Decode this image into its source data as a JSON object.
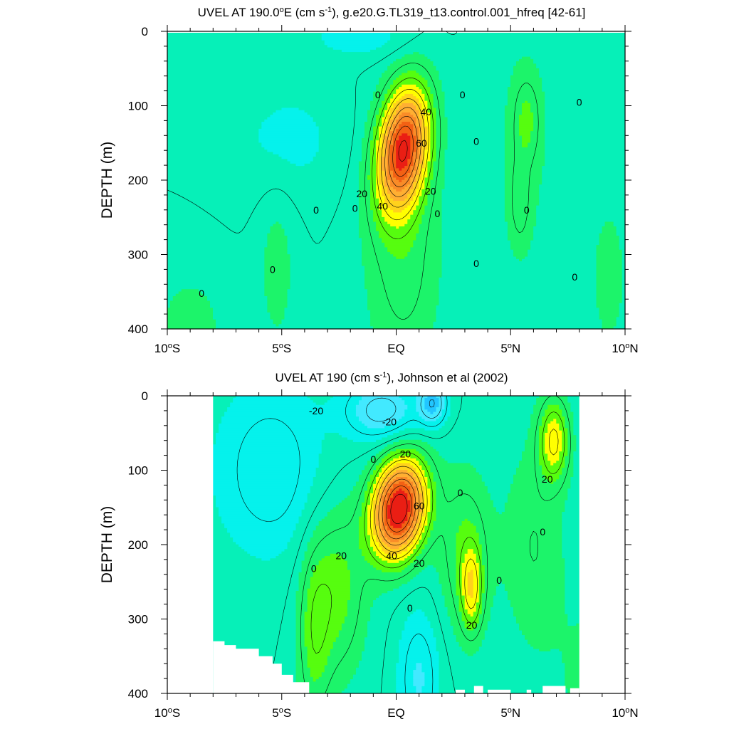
{
  "colors": {
    "n30": "#22c6ff",
    "n20": "#42e9ff",
    "n10": "#05f2ec",
    "z": "#06f0b8",
    "p10": "#1cf46a",
    "p20": "#56fd0f",
    "p30": "#ffff00",
    "p40": "#ffd21c",
    "p50": "#ffaf32",
    "p60": "#f98c28",
    "p70": "#f36114",
    "p80": "#ea1e14",
    "line": "#000000"
  },
  "chart_data": [
    {
      "type": "contour",
      "title": "UVEL AT 190.0°E (cm s-1), g.e20.G.TL319_t13.control.001_hfreq [42-61]",
      "title_parts": {
        "pre": "UVEL AT 190.0",
        "deg": "o",
        "post1": "E (cm s",
        "sup": "-1",
        "post2": "), g.e20.G.TL319_t13.control.001_hfreq [42-61]"
      },
      "ylabel": "DEPTH (m)",
      "xlim": [
        -10,
        10
      ],
      "ylim": [
        0,
        400
      ],
      "y_inverted": true,
      "y_ticks": [
        "0",
        "100",
        "200",
        "300",
        "400"
      ],
      "x_ticks": [
        {
          "val": -10,
          "num": "10",
          "sup": "o",
          "hemi": "S"
        },
        {
          "val": -5,
          "num": "5",
          "sup": "o",
          "hemi": "S"
        },
        {
          "val": 0,
          "num": "EQ",
          "sup": "",
          "hemi": ""
        },
        {
          "val": 5,
          "num": "5",
          "sup": "o",
          "hemi": "N"
        },
        {
          "val": 10,
          "num": "10",
          "sup": "o",
          "hemi": "N"
        }
      ],
      "contour_interval": 10,
      "core": {
        "lat": 0.3,
        "depth": 155,
        "max": 68
      },
      "contour_labels": [
        {
          "text": "0",
          "lat": -0.8,
          "depth": 85
        },
        {
          "text": "0",
          "lat": 2.9,
          "depth": 85
        },
        {
          "text": "0",
          "lat": 8.0,
          "depth": 95
        },
        {
          "text": "0",
          "lat": 3.5,
          "depth": 148
        },
        {
          "text": "40",
          "lat": 1.3,
          "depth": 108
        },
        {
          "text": "60",
          "lat": 1.1,
          "depth": 150
        },
        {
          "text": "20",
          "lat": -1.5,
          "depth": 218
        },
        {
          "text": "40",
          "lat": -0.6,
          "depth": 235
        },
        {
          "text": "20",
          "lat": 1.5,
          "depth": 215
        },
        {
          "text": "0",
          "lat": -3.5,
          "depth": 240
        },
        {
          "text": "0",
          "lat": -1.8,
          "depth": 238
        },
        {
          "text": "0",
          "lat": 1.8,
          "depth": 245
        },
        {
          "text": "0",
          "lat": 5.7,
          "depth": 240
        },
        {
          "text": "0",
          "lat": -5.4,
          "depth": 320
        },
        {
          "text": "0",
          "lat": 3.5,
          "depth": 312
        },
        {
          "text": "0",
          "lat": 7.8,
          "depth": 330
        },
        {
          "text": "0",
          "lat": -8.5,
          "depth": 352
        }
      ]
    },
    {
      "type": "contour",
      "title": "UVEL AT 190 (cm s-1), Johnson et al (2002)",
      "title_parts": {
        "pre": "UVEL AT 190",
        "deg": "",
        "post1": " (cm s",
        "sup": "-1",
        "post2": "), Johnson et al (2002)"
      },
      "ylabel": "DEPTH (m)",
      "xlim": [
        -10,
        10
      ],
      "ylim": [
        0,
        400
      ],
      "y_inverted": true,
      "y_ticks": [
        "0",
        "100",
        "200",
        "300",
        "400"
      ],
      "x_ticks": [
        {
          "val": -10,
          "num": "10",
          "sup": "o",
          "hemi": "S"
        },
        {
          "val": -5,
          "num": "5",
          "sup": "o",
          "hemi": "S"
        },
        {
          "val": 0,
          "num": "EQ",
          "sup": "",
          "hemi": ""
        },
        {
          "val": 5,
          "num": "5",
          "sup": "o",
          "hemi": "N"
        },
        {
          "val": 10,
          "num": "10",
          "sup": "o",
          "hemi": "N"
        }
      ],
      "data_lon_range": [
        -8,
        8
      ],
      "contour_interval": 10,
      "core": {
        "lat": 0.1,
        "depth": 150,
        "max": 82
      },
      "contour_labels": [
        {
          "text": "-20",
          "lat": -3.5,
          "depth": 20
        },
        {
          "text": "-20",
          "lat": -0.3,
          "depth": 35
        },
        {
          "text": "20",
          "lat": 0.4,
          "depth": 78
        },
        {
          "text": "0",
          "lat": -1.0,
          "depth": 85
        },
        {
          "text": "0",
          "lat": 2.8,
          "depth": 130
        },
        {
          "text": "20",
          "lat": 6.6,
          "depth": 112
        },
        {
          "text": "60",
          "lat": 1.0,
          "depth": 148
        },
        {
          "text": "0",
          "lat": 6.4,
          "depth": 183
        },
        {
          "text": "20",
          "lat": -2.4,
          "depth": 215
        },
        {
          "text": "40",
          "lat": -0.2,
          "depth": 215
        },
        {
          "text": "20",
          "lat": 1.0,
          "depth": 225
        },
        {
          "text": "0",
          "lat": -3.6,
          "depth": 232
        },
        {
          "text": "0",
          "lat": 4.5,
          "depth": 248
        },
        {
          "text": "0",
          "lat": 0.6,
          "depth": 285
        },
        {
          "text": "20",
          "lat": 3.3,
          "depth": 308
        }
      ]
    }
  ]
}
